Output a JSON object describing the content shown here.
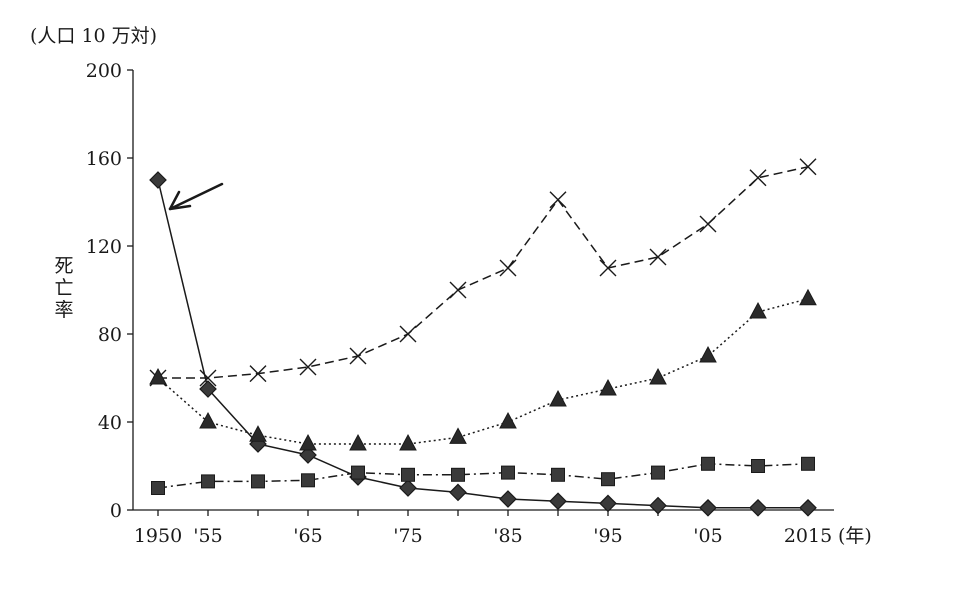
{
  "chart_data": {
    "type": "line",
    "unit_label": "(人口 10 万対)",
    "ylabel": "死亡率",
    "xunit": "(年)",
    "ylim": [
      0,
      200
    ],
    "yticks": [
      0,
      40,
      80,
      120,
      160,
      200
    ],
    "xlim": [
      1950,
      2015
    ],
    "xticks": [
      {
        "value": 1950,
        "label": "1950"
      },
      {
        "value": 1955,
        "label": "'55"
      },
      {
        "value": 1965,
        "label": "'65"
      },
      {
        "value": 1975,
        "label": "'75"
      },
      {
        "value": 1985,
        "label": "'85"
      },
      {
        "value": 1995,
        "label": "'95"
      },
      {
        "value": 2005,
        "label": "'05"
      },
      {
        "value": 2015,
        "label": "2015"
      }
    ],
    "grid": false,
    "series": [
      {
        "marker": "diamond",
        "line": "solid",
        "x": [
          1950,
          1955,
          1960,
          1965,
          1970,
          1975,
          1980,
          1985,
          1990,
          1995,
          2000,
          2005,
          2010,
          2015
        ],
        "values": [
          150,
          55,
          30,
          25,
          15,
          10,
          8,
          5,
          4,
          3,
          2,
          1,
          1,
          1
        ]
      },
      {
        "marker": "cross",
        "line": "dashed",
        "x": [
          1950,
          1955,
          1960,
          1965,
          1970,
          1975,
          1980,
          1985,
          1990,
          1995,
          2000,
          2005,
          2010,
          2015
        ],
        "values": [
          60,
          60,
          62,
          65,
          70,
          80,
          100,
          110,
          141,
          110,
          115,
          130,
          151,
          156
        ]
      },
      {
        "marker": "triangle",
        "line": "dotted",
        "x": [
          1950,
          1955,
          1960,
          1965,
          1970,
          1975,
          1980,
          1985,
          1990,
          1995,
          2000,
          2005,
          2010,
          2015
        ],
        "values": [
          60,
          40,
          34,
          30,
          30,
          30,
          33,
          40,
          50,
          55,
          60,
          70,
          90,
          96
        ]
      },
      {
        "marker": "square",
        "line": "dash-dot",
        "x": [
          1950,
          1955,
          1960,
          1965,
          1970,
          1975,
          1980,
          1985,
          1990,
          1995,
          2000,
          2005,
          2010,
          2015
        ],
        "values": [
          10,
          13,
          13,
          13.5,
          17,
          16,
          16,
          17,
          16,
          14,
          17,
          21,
          20,
          21
        ]
      }
    ],
    "annotations": [
      {
        "type": "arrow",
        "points_to": {
          "x": 1950,
          "y": 150
        }
      }
    ]
  }
}
